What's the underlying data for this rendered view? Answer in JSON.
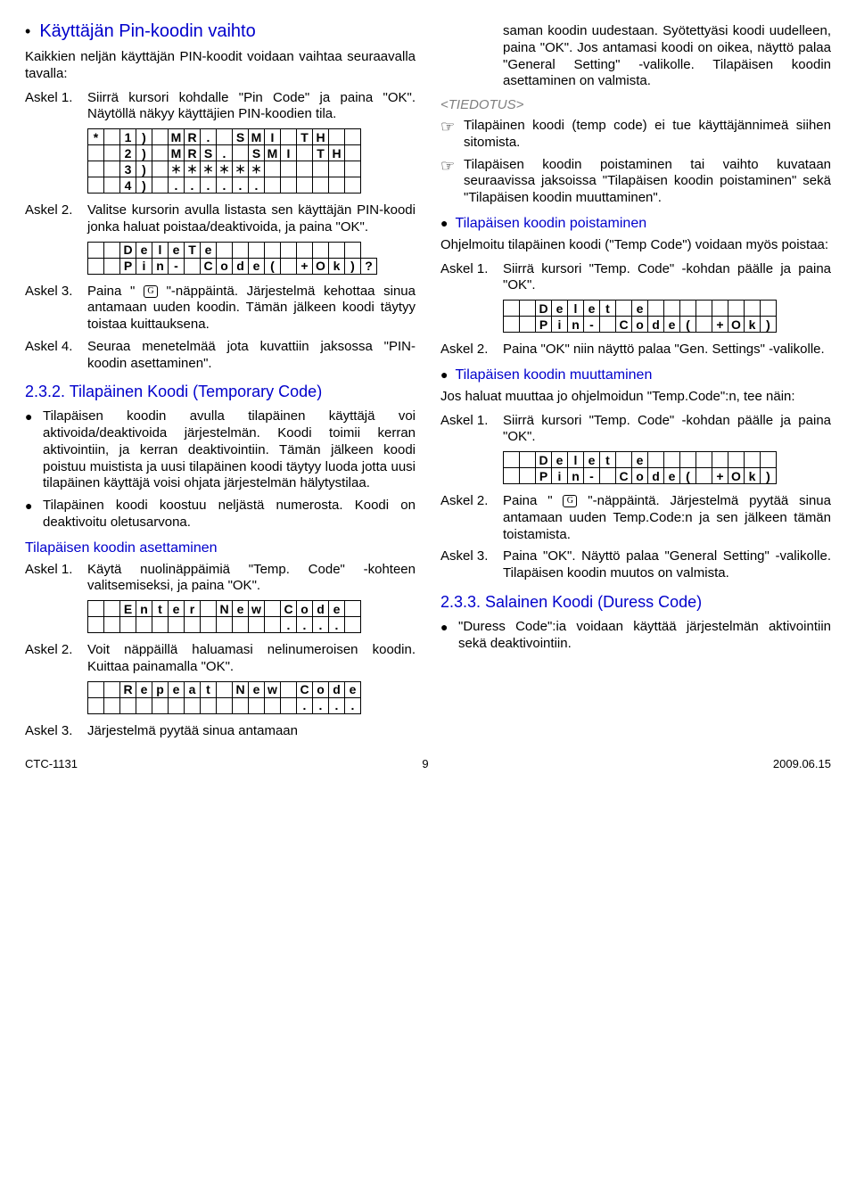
{
  "left": {
    "h1": "Käyttäjän Pin-koodin vaihto",
    "intro": "Kaikkien neljän käyttäjän PIN-koodit voidaan vaihtaa seuraavalla tavalla:",
    "step1_lbl": "Askel 1.",
    "step1": "Siirrä kursori kohdalle \"Pin Code\" ja paina \"OK\". Näytöllä näkyy käyttäjien PIN-koodien tila.",
    "g1_rows": [
      [
        "*",
        "",
        "1",
        ")",
        "",
        "M",
        "R",
        ".",
        "",
        "S",
        "M",
        "I",
        "",
        "T",
        "H",
        "",
        ""
      ],
      [
        "",
        "",
        "2",
        ")",
        "",
        "M",
        "R",
        "S",
        ".",
        "",
        "S",
        "M",
        "I",
        "",
        "T",
        "H",
        ""
      ],
      [
        "",
        "",
        "3",
        ")",
        "",
        "＊",
        "＊",
        "＊",
        "＊",
        "＊",
        "＊",
        "",
        "",
        "",
        "",
        "",
        ""
      ],
      [
        "",
        "",
        "4",
        ")",
        "",
        ".",
        ".",
        ".",
        ".",
        ".",
        ".",
        "",
        "",
        "",
        "",
        "",
        ""
      ]
    ],
    "step2_lbl": "Askel 2.",
    "step2": "Valitse kursorin avulla listasta sen käyttäjän PIN-koodi jonka haluat poistaa/deaktivoida, ja paina \"OK\".",
    "g2_rows": [
      [
        "",
        "",
        "D",
        "e",
        "l",
        "e",
        "T",
        "e",
        "",
        "",
        "",
        "",
        "",
        "",
        "",
        "",
        ""
      ],
      [
        "",
        "",
        "P",
        "i",
        "n",
        "-",
        "",
        "C",
        "o",
        "d",
        "e",
        "(",
        "",
        "+",
        "O",
        "k",
        ")",
        "?"
      ]
    ],
    "step3_lbl": "Askel 3.",
    "step3a": "Paina \" ",
    "step3b": " \"-näppäintä. Järjestelmä kehottaa sinua antamaan uuden koodin. Tämän jälkeen koodi täytyy toistaa kuittauksena.",
    "step4_lbl": "Askel 4.",
    "step4": "Seuraa menetelmää jota kuvattiin jaksossa \"PIN-koodin asettaminen\".",
    "sec232": "2.3.2. Tilapäinen Koodi (Temporary Code)",
    "b1": "Tilapäisen koodin avulla tilapäinen käyttäjä voi aktivoida/deaktivoida järjestelmän. Koodi toimii kerran aktivointiin, ja kerran deaktivointiin. Tämän jälkeen koodi poistuu muistista ja uusi tilapäinen koodi täytyy luoda jotta uusi tilapäinen käyttäjä voisi ohjata järjestelmän hälytystilaa.",
    "b2": "Tilapäinen koodi koostuu neljästä numerosta. Koodi on deaktivoitu oletusarvona.",
    "sub_set": "Tilapäisen koodin asettaminen",
    "sstep1_lbl": "Askel 1.",
    "sstep1": "Käytä nuolinäppäimiä \"Temp. Code\" -kohteen valitsemiseksi, ja paina \"OK\".",
    "g3_rows": [
      [
        "",
        "",
        "E",
        "n",
        "t",
        "e",
        "r",
        "",
        "N",
        "e",
        "w",
        "",
        "C",
        "o",
        "d",
        "e",
        ""
      ],
      [
        "",
        "",
        "",
        "",
        "",
        "",
        "",
        "",
        "",
        "",
        "",
        "",
        ".",
        ".",
        ".",
        ".",
        ""
      ]
    ],
    "sstep2_lbl": "Askel 2.",
    "sstep2": "Voit näppäillä haluamasi nelinumeroisen koodin. Kuittaa painamalla \"OK\".",
    "g4_rows": [
      [
        "",
        "",
        "R",
        "e",
        "p",
        "e",
        "a",
        "t",
        "",
        "N",
        "e",
        "w",
        "",
        "C",
        "o",
        "d",
        "e"
      ],
      [
        "",
        "",
        "",
        "",
        "",
        "",
        "",
        "",
        "",
        "",
        "",
        "",
        "",
        ".",
        ".",
        ".",
        "."
      ]
    ],
    "sstep3_lbl": "Askel 3.",
    "sstep3": "Järjestelmä pyytää sinua antamaan"
  },
  "right": {
    "cont": "saman koodin uudestaan. Syötettyäsi koodi uudelleen, paina \"OK\". Jos antamasi koodi on oikea, näyttö palaa \"General Setting\" -valikolle. Tilapäisen koodin asettaminen on valmista.",
    "tied": "<TIEDOTUS>",
    "h1": "Tilapäinen koodi (temp code) ei tue käyttäjännimeä siihen sitomista.",
    "h2": "Tilapäisen koodin poistaminen tai vaihto kuvataan seuraavissa jaksoissa \"Tilapäisen koodin poistaminen\" sekä \"Tilapäisen koodin muuttaminen\".",
    "sub_del": "Tilapäisen koodin poistaminen",
    "del_intro": "Ohjelmoitu tilapäinen koodi (\"Temp Code\") voidaan myös poistaa:",
    "dstep1_lbl": "Askel 1.",
    "dstep1": "Siirrä kursori \"Temp. Code\" -kohdan päälle ja paina \"OK\".",
    "g5_rows": [
      [
        "",
        "",
        "D",
        "e",
        "l",
        "e",
        "t",
        "",
        "e",
        "",
        "",
        "",
        "",
        "",
        "",
        "",
        ""
      ],
      [
        "",
        "",
        "P",
        "i",
        "n",
        "-",
        "",
        "C",
        "o",
        "d",
        "e",
        "(",
        "",
        "+",
        "O",
        "k",
        ")"
      ]
    ],
    "dstep2_lbl": "Askel 2.",
    "dstep2": "Paina \"OK\" niin näyttö palaa \"Gen. Settings\" -valikolle.",
    "sub_chg": "Tilapäisen koodin muuttaminen",
    "chg_intro": "Jos haluat muuttaa jo ohjelmoidun \"Temp.Code\":n, tee näin:",
    "cstep1_lbl": "Askel 1.",
    "cstep1": "Siirrä kursori \"Temp. Code\" -kohdan päälle ja paina \"OK\".",
    "g6_rows": [
      [
        "",
        "",
        "D",
        "e",
        "l",
        "e",
        "t",
        "",
        "e",
        "",
        "",
        "",
        "",
        "",
        "",
        "",
        ""
      ],
      [
        "",
        "",
        "P",
        "i",
        "n",
        "-",
        "",
        "C",
        "o",
        "d",
        "e",
        "(",
        "",
        "+",
        "O",
        "k",
        ")"
      ]
    ],
    "cstep2_lbl": "Askel 2.",
    "cstep2a": "Paina \" ",
    "cstep2b": " \"-näppäintä. Järjestelmä pyytää sinua antamaan uuden Temp.Code:n ja sen jälkeen tämän toistamista.",
    "cstep3_lbl": "Askel 3.",
    "cstep3": "Paina \"OK\". Näyttö palaa \"General Setting\" -valikolle. Tilapäisen koodin muutos on valmista.",
    "sec233": "2.3.3. Salainen Koodi (Duress Code)",
    "b233": "\"Duress Code\":ia voidaan käyttää järjestelmän aktivointiin sekä deaktivointiin."
  },
  "footer": {
    "l": "CTC-1131",
    "c": "9",
    "r": "2009.06.15"
  }
}
